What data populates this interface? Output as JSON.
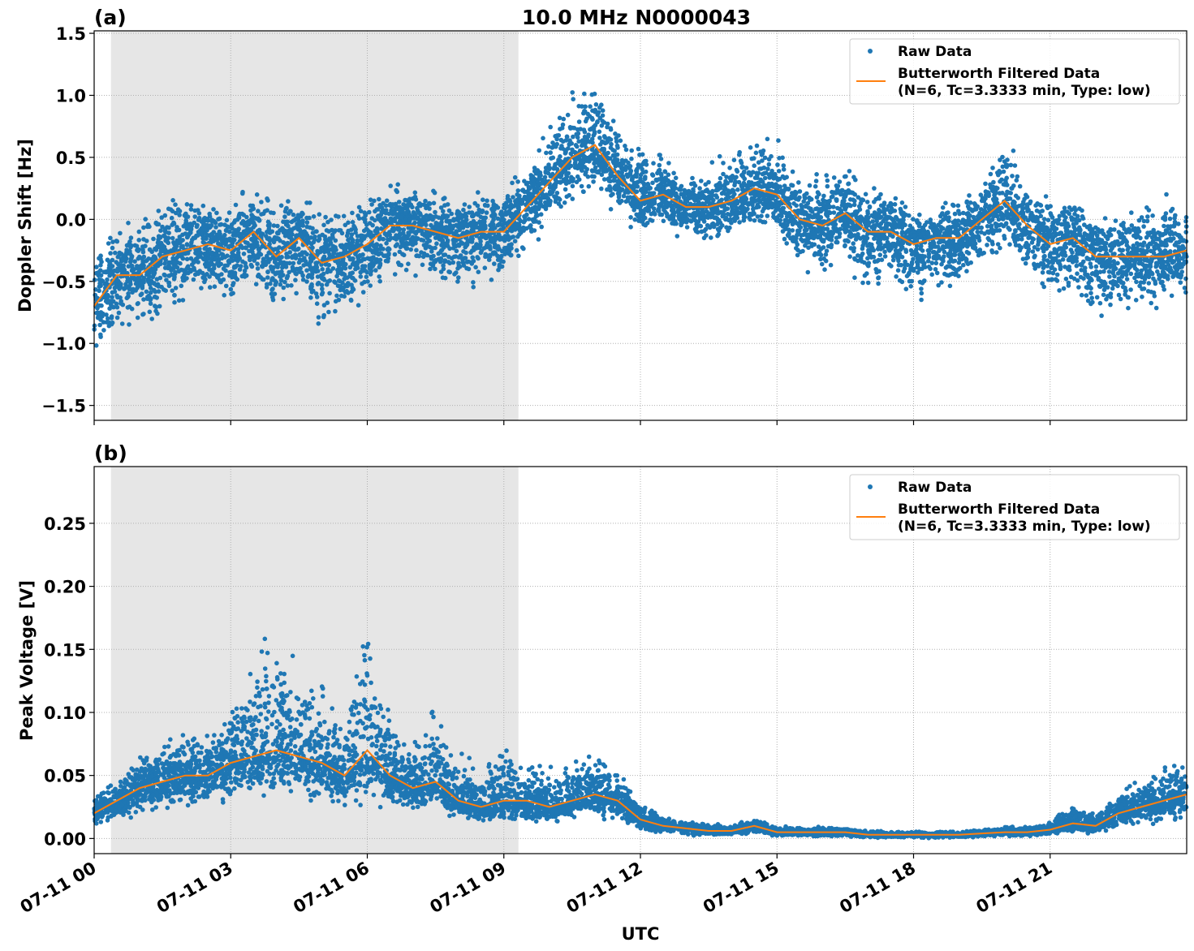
{
  "title": "10.0 MHz N0000043",
  "colors": {
    "raw": "#1f77b4",
    "filtered": "#ff7f0e",
    "shade": "#e6e6e6",
    "grid": "#b0b0b0"
  },
  "chart_data": [
    {
      "type": "scatter+line",
      "panel_label": "(a)",
      "title": "10.0 MHz N0000043",
      "xlabel": "",
      "ylabel": "Doppler Shift [Hz]",
      "xlim_hours": [
        0,
        24
      ],
      "ylim": [
        -1.62,
        1.52
      ],
      "yticks": [
        -1.5,
        -1.0,
        -0.5,
        0.0,
        0.5,
        1.0,
        1.5
      ],
      "ytick_labels": [
        "−1.5",
        "−1.0",
        "−0.5",
        "0.0",
        "0.5",
        "1.0",
        "1.5"
      ],
      "grid": true,
      "shaded_region_hours": [
        0.37,
        9.32
      ],
      "legend": {
        "placement": "top-right",
        "entries": [
          "Raw Data",
          "Butterworth Filtered Data",
          "(N=6, Tc=3.3333 min, Type: low)"
        ]
      },
      "x_hours": [
        0,
        0.5,
        1,
        1.5,
        2,
        2.5,
        3,
        3.5,
        4,
        4.5,
        5,
        5.5,
        6,
        6.5,
        7,
        7.5,
        8,
        8.5,
        9,
        9.5,
        10,
        10.5,
        11,
        11.5,
        12,
        12.5,
        13,
        13.5,
        14,
        14.5,
        15,
        15.5,
        16,
        16.5,
        17,
        17.5,
        18,
        18.5,
        19,
        19.5,
        20,
        20.5,
        21,
        21.5,
        22,
        22.5,
        23,
        23.5,
        24
      ],
      "series": [
        {
          "name": "Butterworth Filtered Data",
          "kind": "line",
          "values": [
            -0.7,
            -0.45,
            -0.45,
            -0.3,
            -0.25,
            -0.2,
            -0.25,
            -0.1,
            -0.3,
            -0.15,
            -0.35,
            -0.3,
            -0.2,
            -0.05,
            -0.05,
            -0.1,
            -0.15,
            -0.1,
            -0.1,
            0.1,
            0.3,
            0.5,
            0.6,
            0.35,
            0.15,
            0.2,
            0.1,
            0.1,
            0.15,
            0.25,
            0.2,
            0.0,
            -0.05,
            0.05,
            -0.1,
            -0.1,
            -0.2,
            -0.15,
            -0.15,
            0.0,
            0.15,
            -0.05,
            -0.2,
            -0.15,
            -0.3,
            -0.3,
            -0.3,
            -0.3,
            -0.25
          ]
        },
        {
          "name": "Raw Data",
          "kind": "scatter-band",
          "low": [
            -1.15,
            -0.95,
            -0.9,
            -0.85,
            -0.8,
            -0.75,
            -0.8,
            -0.65,
            -0.9,
            -0.75,
            -0.95,
            -0.85,
            -0.7,
            -0.55,
            -0.55,
            -0.6,
            -0.65,
            -0.6,
            -0.55,
            -0.35,
            -0.1,
            0.1,
            0.2,
            0.0,
            -0.15,
            -0.1,
            -0.25,
            -0.25,
            -0.2,
            -0.1,
            -0.1,
            -0.5,
            -0.55,
            -0.4,
            -0.7,
            -0.6,
            -0.7,
            -0.65,
            -0.65,
            -0.45,
            -0.3,
            -0.55,
            -0.7,
            -0.65,
            -0.9,
            -0.85,
            -0.8,
            -0.75,
            -0.7
          ],
          "high": [
            -0.2,
            0.05,
            0.1,
            0.2,
            0.25,
            0.2,
            0.2,
            0.35,
            0.25,
            0.3,
            0.15,
            0.1,
            0.3,
            0.35,
            0.3,
            0.3,
            0.25,
            0.3,
            0.3,
            0.5,
            0.8,
            1.1,
            1.25,
            0.85,
            0.6,
            0.6,
            0.45,
            0.45,
            0.6,
            0.8,
            0.7,
            0.45,
            0.4,
            0.5,
            0.35,
            0.3,
            0.15,
            0.15,
            0.2,
            0.4,
            0.8,
            0.3,
            0.25,
            0.25,
            0.1,
            0.1,
            0.15,
            0.35,
            0.3
          ]
        }
      ]
    },
    {
      "type": "scatter+line",
      "panel_label": "(b)",
      "xlabel": "UTC",
      "ylabel": "Peak Voltage [V]",
      "xlim_hours": [
        0,
        24
      ],
      "ylim": [
        -0.012,
        0.295
      ],
      "yticks": [
        0.0,
        0.05,
        0.1,
        0.15,
        0.2,
        0.25
      ],
      "ytick_labels": [
        "0.00",
        "0.05",
        "0.10",
        "0.15",
        "0.20",
        "0.25"
      ],
      "xticks_hours": [
        0,
        3,
        6,
        9,
        12,
        15,
        18,
        21
      ],
      "xtick_labels": [
        "07-11 00",
        "07-11 03",
        "07-11 06",
        "07-11 09",
        "07-11 12",
        "07-11 15",
        "07-11 18",
        "07-11 21"
      ],
      "grid": true,
      "shaded_region_hours": [
        0.37,
        9.32
      ],
      "legend": {
        "placement": "top-right",
        "entries": [
          "Raw Data",
          "Butterworth Filtered Data",
          "(N=6, Tc=3.3333 min, Type: low)"
        ]
      },
      "x_hours": [
        0,
        0.5,
        1,
        1.5,
        2,
        2.5,
        3,
        3.5,
        4,
        4.5,
        5,
        5.5,
        6,
        6.5,
        7,
        7.5,
        8,
        8.5,
        9,
        9.5,
        10,
        10.5,
        11,
        11.5,
        12,
        12.5,
        13,
        13.5,
        14,
        14.5,
        15,
        15.5,
        16,
        16.5,
        17,
        17.5,
        18,
        18.5,
        19,
        19.5,
        20,
        20.5,
        21,
        21.5,
        22,
        22.5,
        23,
        23.5,
        24
      ],
      "series": [
        {
          "name": "Butterworth Filtered Data",
          "kind": "line",
          "values": [
            0.02,
            0.03,
            0.04,
            0.045,
            0.05,
            0.05,
            0.06,
            0.065,
            0.07,
            0.065,
            0.06,
            0.05,
            0.07,
            0.05,
            0.04,
            0.045,
            0.03,
            0.025,
            0.03,
            0.03,
            0.025,
            0.03,
            0.035,
            0.03,
            0.015,
            0.01,
            0.008,
            0.006,
            0.006,
            0.01,
            0.005,
            0.005,
            0.005,
            0.005,
            0.003,
            0.003,
            0.003,
            0.003,
            0.003,
            0.004,
            0.005,
            0.005,
            0.007,
            0.012,
            0.01,
            0.02,
            0.025,
            0.03,
            0.035
          ]
        },
        {
          "name": "Raw Data",
          "kind": "scatter-band",
          "low": [
            0.008,
            0.012,
            0.015,
            0.018,
            0.02,
            0.022,
            0.025,
            0.025,
            0.028,
            0.025,
            0.025,
            0.022,
            0.025,
            0.02,
            0.018,
            0.018,
            0.012,
            0.01,
            0.012,
            0.01,
            0.01,
            0.012,
            0.014,
            0.012,
            0.005,
            0.003,
            0.002,
            0.002,
            0.002,
            0.003,
            0.001,
            0.001,
            0.001,
            0.001,
            0.0,
            0.0,
            0.0,
            0.0,
            0.0,
            0.001,
            0.001,
            0.001,
            0.002,
            0.003,
            0.003,
            0.006,
            0.008,
            0.01,
            0.012
          ],
          "high": [
            0.035,
            0.05,
            0.07,
            0.08,
            0.09,
            0.09,
            0.12,
            0.15,
            0.2,
            0.14,
            0.13,
            0.1,
            0.2,
            0.1,
            0.08,
            0.12,
            0.07,
            0.06,
            0.09,
            0.07,
            0.06,
            0.065,
            0.07,
            0.06,
            0.03,
            0.02,
            0.015,
            0.012,
            0.012,
            0.018,
            0.01,
            0.01,
            0.01,
            0.009,
            0.007,
            0.006,
            0.006,
            0.006,
            0.006,
            0.008,
            0.01,
            0.01,
            0.014,
            0.035,
            0.02,
            0.04,
            0.05,
            0.06,
            0.07
          ]
        }
      ]
    }
  ]
}
